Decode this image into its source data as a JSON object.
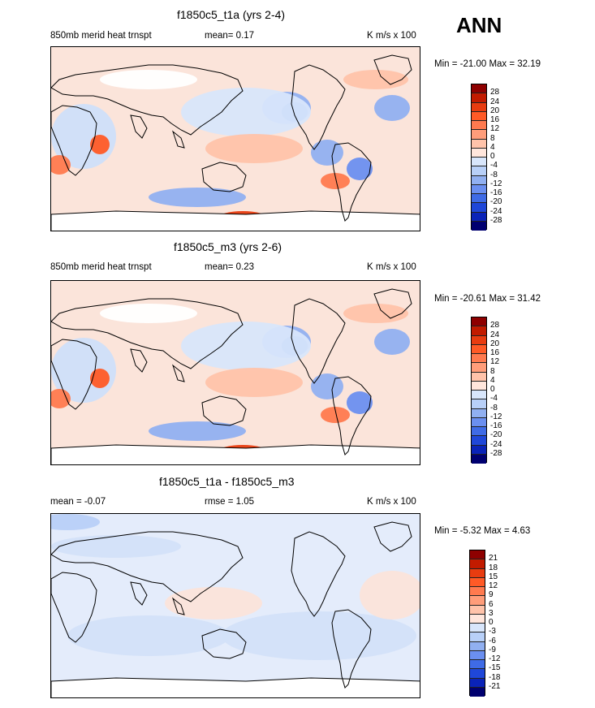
{
  "header": {
    "season": "ANN"
  },
  "chart_data": [
    {
      "type": "heatmap",
      "title": "f1850c5_t1a (yrs 2-4)",
      "left_label": "850mb merid heat trnspt",
      "mean_label": "mean=   0.17",
      "units": "K m/s x 100",
      "minmax": "Min = -21.00 Max =  32.19",
      "mean": 0.17,
      "min": -21.0,
      "max": 32.19,
      "colorbar": {
        "levels": [
          "28",
          "24",
          "20",
          "16",
          "12",
          "8",
          "4",
          "0",
          "-4",
          "-8",
          "-12",
          "-16",
          "-20",
          "-24",
          "-28"
        ],
        "colors": [
          "#8e0000",
          "#c21b00",
          "#e83c10",
          "#ff5a26",
          "#ff7a4f",
          "#ff9d7a",
          "#ffc3aa",
          "#ffe6dc",
          "#d8e6fb",
          "#b8d0f8",
          "#91b0f1",
          "#6b8ff0",
          "#3f6be6",
          "#1f47d9",
          "#0a23b8",
          "#000070"
        ]
      },
      "patches": [
        {
          "x": [
            110,
            185,
            260,
            140
          ],
          "v": [
            -1,
            -1,
            -1,
            -1
          ],
          "note": "w"
        }
      ]
    },
    {
      "type": "heatmap",
      "title": "f1850c5_m3 (yrs 2-6)",
      "left_label": "850mb merid heat trnspt",
      "mean_label": "mean=   0.23",
      "units": "K m/s x 100",
      "minmax": "Min = -20.61 Max =  31.42",
      "mean": 0.23,
      "min": -20.61,
      "max": 31.42,
      "colorbar": {
        "levels": [
          "28",
          "24",
          "20",
          "16",
          "12",
          "8",
          "4",
          "0",
          "-4",
          "-8",
          "-12",
          "-16",
          "-20",
          "-24",
          "-28"
        ],
        "colors": [
          "#8e0000",
          "#c21b00",
          "#e83c10",
          "#ff5a26",
          "#ff7a4f",
          "#ff9d7a",
          "#ffc3aa",
          "#ffe6dc",
          "#d8e6fb",
          "#b8d0f8",
          "#91b0f1",
          "#6b8ff0",
          "#3f6be6",
          "#1f47d9",
          "#0a23b8",
          "#000070"
        ]
      }
    },
    {
      "type": "heatmap",
      "title": "f1850c5_t1a - f1850c5_m3",
      "left_label": "mean =  -0.07",
      "mean_label": "rmse =   1.05",
      "units": "K m/s x 100",
      "minmax": "Min =  -5.32 Max =   4.63",
      "mean": -0.07,
      "rmse": 1.05,
      "min": -5.32,
      "max": 4.63,
      "colorbar": {
        "levels": [
          "21",
          "18",
          "15",
          "12",
          "9",
          "6",
          "3",
          "0",
          "-3",
          "-6",
          "-9",
          "-12",
          "-15",
          "-18",
          "-21"
        ],
        "colors": [
          "#8e0000",
          "#c21b00",
          "#e83c10",
          "#ff5a26",
          "#ff7a4f",
          "#ff9d7a",
          "#ffc3aa",
          "#ffe6dc",
          "#d8e6fb",
          "#b8d0f8",
          "#91b0f1",
          "#6b8ff0",
          "#3f6be6",
          "#1f47d9",
          "#0a23b8",
          "#000070"
        ]
      }
    }
  ]
}
